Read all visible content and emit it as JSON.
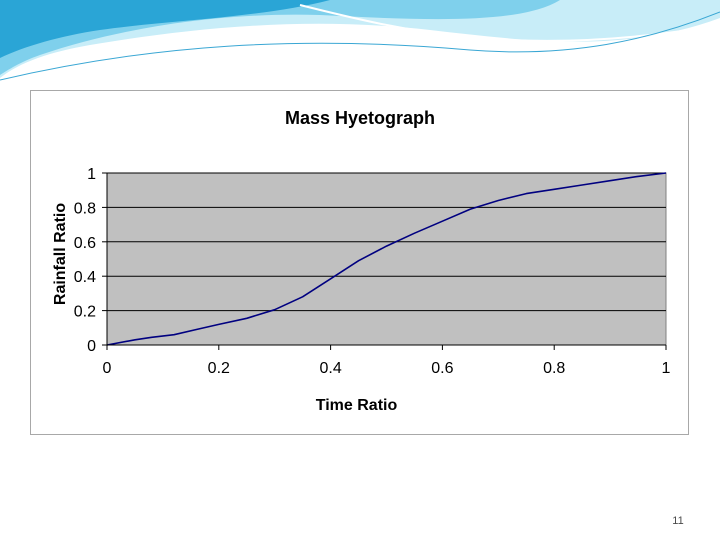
{
  "slide": {
    "page_number": "11",
    "banner_colors": [
      "#2aa5d6",
      "#7fd0ec",
      "#c4ecf8"
    ]
  },
  "colors": {
    "plot_background": "#c0c0c0",
    "gridline": "#000000",
    "series_line": "#000080"
  },
  "chart_data": {
    "type": "line",
    "title": "Mass Hyetograph",
    "xlabel": "Time Ratio",
    "ylabel": "Rainfall Ratio",
    "xlim": [
      0,
      1
    ],
    "ylim": [
      0,
      1
    ],
    "x_ticks": [
      "0",
      "0.2",
      "0.4",
      "0.6",
      "0.8",
      "1"
    ],
    "y_ticks": [
      "0",
      "0.2",
      "0.4",
      "0.6",
      "0.8",
      "1"
    ],
    "grid": "horizontal",
    "legend": "none",
    "series": [
      {
        "x": [
          0,
          0.05,
          0.08,
          0.12,
          0.16,
          0.2,
          0.25,
          0.3,
          0.35,
          0.4,
          0.45,
          0.5,
          0.55,
          0.6,
          0.65,
          0.7,
          0.75,
          0.8,
          0.85,
          0.9,
          0.95,
          1
        ],
        "y": [
          0,
          0.03,
          0.045,
          0.06,
          0.09,
          0.12,
          0.155,
          0.205,
          0.28,
          0.385,
          0.49,
          0.575,
          0.65,
          0.72,
          0.79,
          0.84,
          0.88,
          0.905,
          0.93,
          0.955,
          0.98,
          1
        ]
      }
    ]
  }
}
